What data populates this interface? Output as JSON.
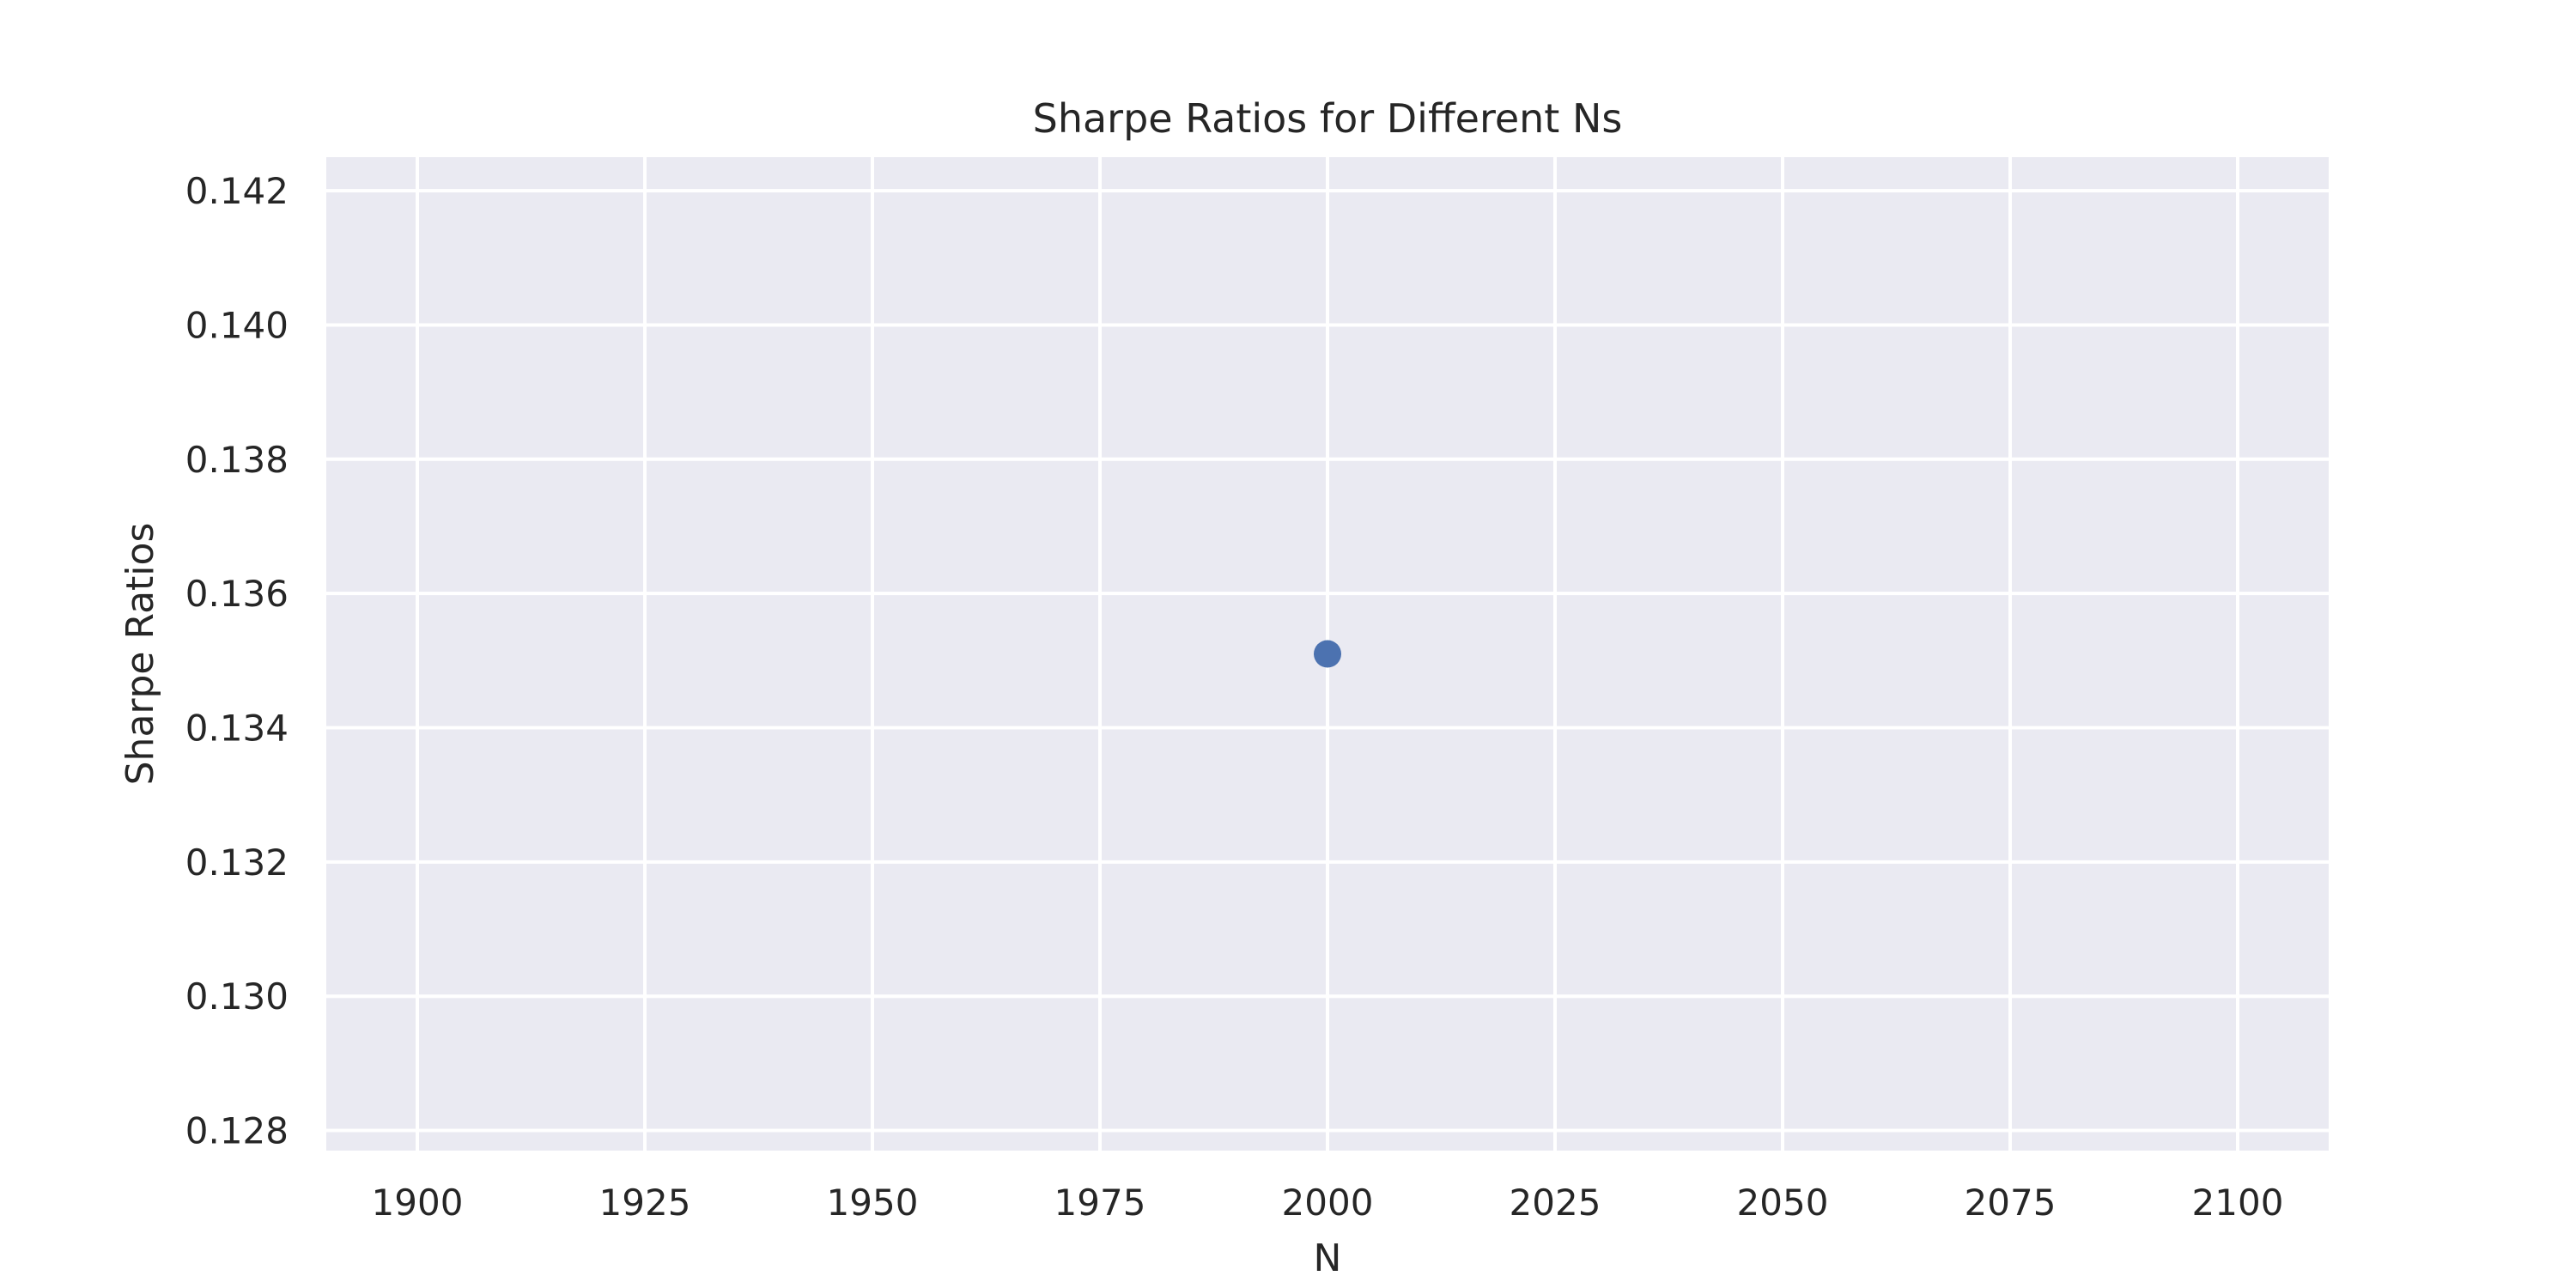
{
  "chart_data": {
    "type": "scatter",
    "title": "Sharpe Ratios for Different Ns",
    "xlabel": "N",
    "ylabel": "Sharpe Ratios",
    "x_ticks": [
      1900,
      1925,
      1950,
      1975,
      2000,
      2025,
      2050,
      2075,
      2100
    ],
    "y_ticks": [
      0.128,
      0.13,
      0.132,
      0.134,
      0.136,
      0.138,
      0.14,
      0.142
    ],
    "x_tick_labels": [
      "1900",
      "1925",
      "1950",
      "1975",
      "2000",
      "2025",
      "2050",
      "2075",
      "2100"
    ],
    "y_tick_labels": [
      "0.128",
      "0.130",
      "0.132",
      "0.134",
      "0.136",
      "0.138",
      "0.140",
      "0.142"
    ],
    "xlim": [
      1890,
      2110
    ],
    "ylim": [
      0.1277,
      0.1425
    ],
    "grid": true,
    "series": [
      {
        "points": [
          {
            "x": 2000,
            "y": 0.1351
          }
        ]
      }
    ],
    "colors": {
      "plot_background": "#eaeaf2",
      "grid": "#ffffff",
      "marker": "#4c72b0",
      "text": "#262626"
    }
  }
}
